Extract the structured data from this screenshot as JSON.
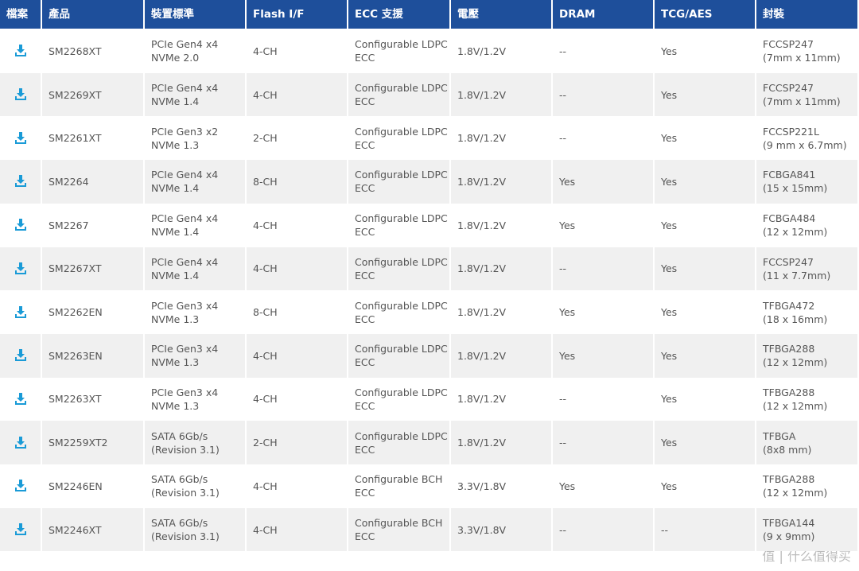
{
  "table": {
    "header": [
      "檔案",
      "產品",
      "裝置標準",
      "Flash I/F",
      "ECC 支援",
      "電壓",
      "DRAM",
      "TCG/AES",
      "封裝"
    ],
    "rows": [
      [
        "SM2268XT",
        [
          "PCIe Gen4 x4",
          "NVMe 2.0"
        ],
        "4-CH",
        [
          "Configurable LDPC",
          "ECC"
        ],
        "1.8V/1.2V",
        "--",
        "Yes",
        [
          "FCCSP247",
          "(7mm x 11mm)"
        ]
      ],
      [
        "SM2269XT",
        [
          "PCIe Gen4 x4",
          "NVMe 1.4"
        ],
        "4-CH",
        [
          "Configurable LDPC",
          "ECC"
        ],
        "1.8V/1.2V",
        "--",
        "Yes",
        [
          "FCCSP247",
          "(7mm x 11mm)"
        ]
      ],
      [
        "SM2261XT",
        [
          "PCIe Gen3 x2",
          "NVMe 1.3"
        ],
        "2-CH",
        [
          "Configurable LDPC",
          "ECC"
        ],
        "1.8V/1.2V",
        "--",
        "Yes",
        [
          "FCCSP221L",
          "(9 mm x 6.7mm)"
        ]
      ],
      [
        "SM2264",
        [
          "PCIe Gen4 x4",
          "NVMe 1.4"
        ],
        "8-CH",
        [
          "Configurable LDPC",
          "ECC"
        ],
        "1.8V/1.2V",
        "Yes",
        "Yes",
        [
          "FCBGA841",
          "(15 x 15mm)"
        ]
      ],
      [
        "SM2267",
        [
          "PCIe Gen4 x4",
          "NVMe 1.4"
        ],
        "4-CH",
        [
          "Configurable LDPC",
          "ECC"
        ],
        "1.8V/1.2V",
        "Yes",
        "Yes",
        [
          "FCBGA484",
          "(12 x 12mm)"
        ]
      ],
      [
        "SM2267XT",
        [
          "PCIe Gen4 x4",
          "NVMe 1.4"
        ],
        "4-CH",
        [
          "Configurable LDPC",
          "ECC"
        ],
        "1.8V/1.2V",
        "--",
        "Yes",
        [
          "FCCSP247",
          "(11 x 7.7mm)"
        ]
      ],
      [
        "SM2262EN",
        [
          "PCIe Gen3 x4",
          "NVMe 1.3"
        ],
        "8-CH",
        [
          "Configurable LDPC",
          "ECC"
        ],
        "1.8V/1.2V",
        "Yes",
        "Yes",
        [
          "TFBGA472",
          "(18 x 16mm)"
        ]
      ],
      [
        "SM2263EN",
        [
          "PCIe Gen3 x4",
          "NVMe 1.3"
        ],
        "4-CH",
        [
          "Configurable LDPC",
          "ECC"
        ],
        "1.8V/1.2V",
        "Yes",
        "Yes",
        [
          "TFBGA288",
          "(12 x 12mm)"
        ]
      ],
      [
        "SM2263XT",
        [
          "PCIe Gen3 x4",
          "NVMe 1.3"
        ],
        "4-CH",
        [
          "Configurable LDPC",
          "ECC"
        ],
        "1.8V/1.2V",
        "--",
        "Yes",
        [
          "TFBGA288",
          "(12 x 12mm)"
        ]
      ],
      [
        "SM2259XT2",
        [
          "SATA 6Gb/s",
          "(Revision 3.1)"
        ],
        "2-CH",
        [
          "Configurable LDPC",
          "ECC"
        ],
        "1.8V/1.2V",
        "--",
        "Yes",
        [
          "TFBGA",
          "(8x8 mm)"
        ]
      ],
      [
        "SM2246EN",
        [
          "SATA 6Gb/s",
          "(Revision 3.1)"
        ],
        "4-CH",
        [
          "Configurable BCH",
          "ECC"
        ],
        "3.3V/1.8V",
        "Yes",
        "Yes",
        [
          "TFBGA288",
          "(12 x 12mm)"
        ]
      ],
      [
        "SM2246XT",
        [
          "SATA 6Gb/s",
          "(Revision 3.1)"
        ],
        "4-CH",
        [
          "Configurable BCH",
          "ECC"
        ],
        "3.3V/1.8V",
        "--",
        "--",
        [
          "TFBGA144",
          "(9 x 9mm)"
        ]
      ]
    ]
  },
  "watermark": "值 | 什么值得买"
}
